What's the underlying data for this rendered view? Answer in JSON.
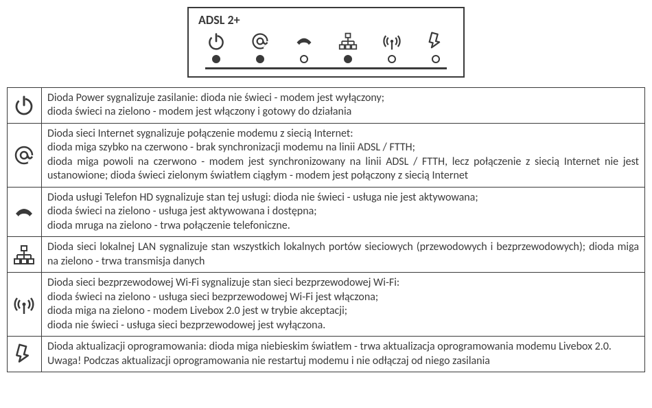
{
  "modem": {
    "title": "ADSL 2+",
    "icons": [
      "power-icon",
      "at-icon",
      "phone-icon",
      "lan-icon",
      "wifi-icon",
      "update-icon"
    ],
    "leds": [
      true,
      true,
      false,
      true,
      false,
      false
    ],
    "stroke": "#3a3a3a",
    "led_border": "#3a3a3a"
  },
  "table": {
    "rows": [
      {
        "icon": "power-icon",
        "lines": [
          "Dioda Power sygnalizuje zasilanie: dioda nie świeci - modem jest wyłączony;",
          "dioda świeci na zielono - modem jest włączony i gotowy do działania"
        ],
        "justify": false
      },
      {
        "icon": "at-icon",
        "lines": [
          "Dioda sieci Internet sygnalizuje połączenie modemu z siecią Internet:",
          "dioda miga szybko na czerwono - brak synchronizacji modemu na linii ADSL / FTTH;",
          "dioda miga powoli na czerwono - modem jest synchronizowany na linii ADSL / FTTH, lecz połączenie z siecią Internet nie jest ustanowione; dioda świeci zielonym światłem ciągłym - modem jest połączony z siecią Internet"
        ],
        "justify": true
      },
      {
        "icon": "phone-icon",
        "lines": [
          "Dioda usługi Telefon HD sygnalizuje stan tej usługi: dioda nie świeci - usługa nie jest aktywowana;",
          "dioda świeci na zielono - usługa jest aktywowana i dostępna;",
          "dioda mruga na zielono - trwa połączenie telefoniczne."
        ],
        "justify": false
      },
      {
        "icon": "lan-icon",
        "lines": [
          "Dioda sieci lokalnej LAN sygnalizuje stan wszystkich lokalnych portów sieciowych (przewodowych i bezprzewodowych); dioda miga na zielono - trwa transmisja danych"
        ],
        "justify": true
      },
      {
        "icon": "wifi-icon",
        "lines": [
          "Dioda sieci bezprzewodowej Wi-Fi sygnalizuje stan sieci bezprzewodowej Wi-Fi:",
          "dioda świeci na zielono - usługa sieci bezprzewodowej Wi-Fi jest włączona;",
          "dioda miga na zielono - modem Livebox 2.0 jest w trybie akceptacji;",
          "dioda nie świeci - usługa sieci bezprzewodowej jest wyłączona."
        ],
        "justify": false
      },
      {
        "icon": "update-icon",
        "lines": [
          "Dioda aktualizacji oprogramowania: dioda miga niebieskim światłem - trwa aktualizacja oprogramowania modemu Livebox 2.0.",
          "Uwaga! Podczas aktualizacji oprogramowania nie restartuj modemu i nie odłączaj od niego zasilania"
        ],
        "justify": false
      }
    ]
  },
  "style": {
    "stroke": "#3a3a3a",
    "font_size_body": 16,
    "font_size_title": 18,
    "icon_size_modem": 28,
    "icon_size_table": 32
  }
}
